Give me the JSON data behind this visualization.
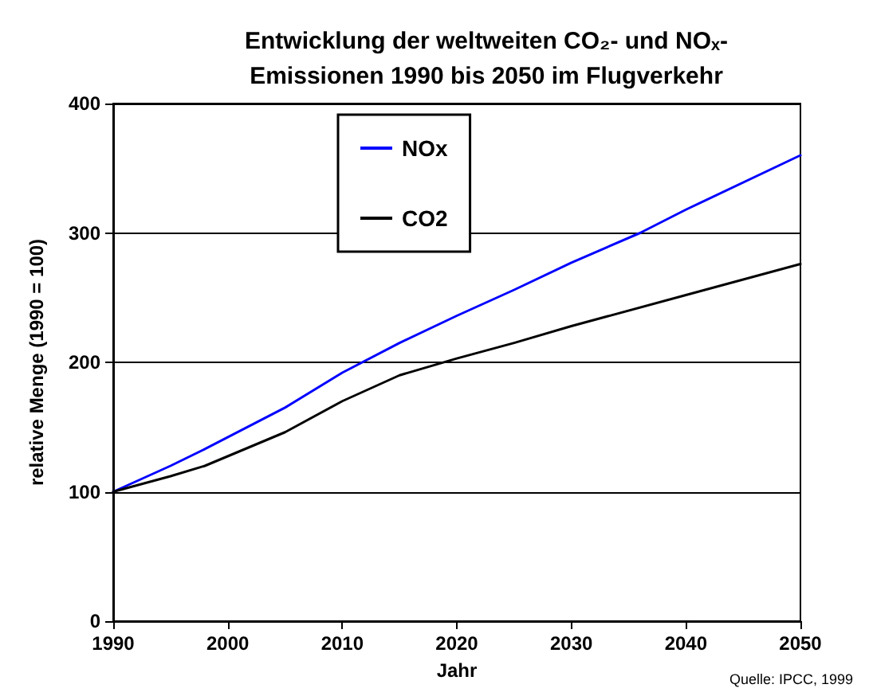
{
  "chart_data": {
    "type": "line",
    "title": "Entwicklung der weltweiten CO₂- und NOₓ-\nEmissionen 1990 bis 2050 im Flugverkehr",
    "xlabel": "Jahr",
    "ylabel": "relative Menge (1990 = 100)",
    "annotations": [
      "Quelle: IPCC, 1999"
    ],
    "series": [
      {
        "name": "NOx",
        "color": "#0000ff",
        "x": [
          1990,
          1995,
          1998,
          2005,
          2010,
          2015,
          2020,
          2025,
          2030,
          2036,
          2040,
          2050
        ],
        "values": [
          100,
          120,
          133,
          165,
          192,
          215,
          236,
          256,
          277,
          300,
          318,
          360
        ]
      },
      {
        "name": "CO2",
        "color": "#000000",
        "x": [
          1990,
          1995,
          1998,
          2005,
          2010,
          2015,
          2020,
          2025,
          2030,
          2040,
          2050
        ],
        "values": [
          100,
          112,
          120,
          146,
          170,
          190,
          203,
          215,
          228,
          252,
          276
        ]
      }
    ],
    "xlim": [
      1990,
      2050
    ],
    "xticks": [
      1990,
      2000,
      2010,
      2020,
      2030,
      2040,
      2050
    ],
    "ylim": [
      0,
      400
    ],
    "yticks": [
      0,
      100,
      200,
      300,
      400
    ],
    "grid": "y",
    "legend": "top",
    "marker": "none",
    "line_style": "solid"
  }
}
